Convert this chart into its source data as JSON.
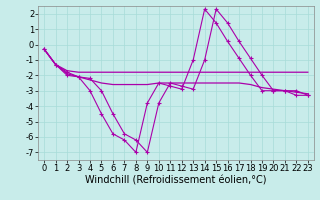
{
  "background_color": "#c8ecea",
  "line_color": "#aa00aa",
  "xlabel": "Windchill (Refroidissement éolien,°C)",
  "xlabel_fontsize": 7,
  "tick_fontsize": 6,
  "ylim": [
    -7.5,
    2.5
  ],
  "xlim": [
    -0.5,
    23.5
  ],
  "yticks": [
    -7,
    -6,
    -5,
    -4,
    -3,
    -2,
    -1,
    0,
    1,
    2
  ],
  "xticks": [
    0,
    1,
    2,
    3,
    4,
    5,
    6,
    7,
    8,
    9,
    10,
    11,
    12,
    13,
    14,
    15,
    16,
    17,
    18,
    19,
    20,
    21,
    22,
    23
  ],
  "line1_x": [
    0,
    1,
    2,
    3,
    4,
    5,
    6,
    7,
    8,
    9,
    10,
    11,
    12,
    13,
    14,
    15,
    16,
    17,
    18,
    19,
    20,
    21,
    22,
    23
  ],
  "line1_y": [
    -0.3,
    -1.3,
    -2.0,
    -2.1,
    -3.0,
    -4.5,
    -5.8,
    -6.2,
    -7.0,
    -3.8,
    -2.5,
    -2.7,
    -2.9,
    -1.0,
    2.3,
    1.4,
    0.2,
    -0.9,
    -2.0,
    -3.0,
    -3.0,
    -3.0,
    -3.3,
    -3.3
  ],
  "line2_x": [
    0,
    1,
    2,
    3,
    4,
    5,
    6,
    7,
    8,
    9,
    10,
    11,
    12,
    13,
    14,
    15,
    16,
    17,
    18,
    19,
    20,
    21,
    22,
    23
  ],
  "line2_y": [
    -0.3,
    -1.3,
    -1.7,
    -1.8,
    -1.8,
    -1.8,
    -1.8,
    -1.8,
    -1.8,
    -1.8,
    -1.8,
    -1.8,
    -1.8,
    -1.8,
    -1.8,
    -1.8,
    -1.8,
    -1.8,
    -1.8,
    -1.8,
    -1.8,
    -1.8,
    -1.8,
    -1.8
  ],
  "line3_x": [
    0,
    1,
    2,
    3,
    4,
    5,
    6,
    7,
    8,
    9,
    10,
    11,
    12,
    13,
    14,
    15,
    16,
    17,
    18,
    19,
    20,
    21,
    22,
    23
  ],
  "line3_y": [
    -0.3,
    -1.3,
    -1.9,
    -2.1,
    -2.3,
    -2.5,
    -2.6,
    -2.6,
    -2.6,
    -2.6,
    -2.5,
    -2.5,
    -2.5,
    -2.5,
    -2.5,
    -2.5,
    -2.5,
    -2.5,
    -2.6,
    -2.8,
    -2.9,
    -3.0,
    -3.1,
    -3.2
  ],
  "line4_x": [
    0,
    1,
    2,
    3,
    4,
    5,
    6,
    7,
    8,
    9,
    10,
    11,
    12,
    13,
    14,
    15,
    16,
    17,
    18,
    19,
    20,
    21,
    22,
    23
  ],
  "line4_y": [
    -0.3,
    -1.3,
    -1.8,
    -2.1,
    -2.2,
    -3.0,
    -4.5,
    -5.8,
    -6.2,
    -7.0,
    -3.8,
    -2.5,
    -2.7,
    -2.9,
    -1.0,
    2.3,
    1.4,
    0.2,
    -0.9,
    -2.0,
    -3.0,
    -3.0,
    -3.0,
    -3.3
  ]
}
